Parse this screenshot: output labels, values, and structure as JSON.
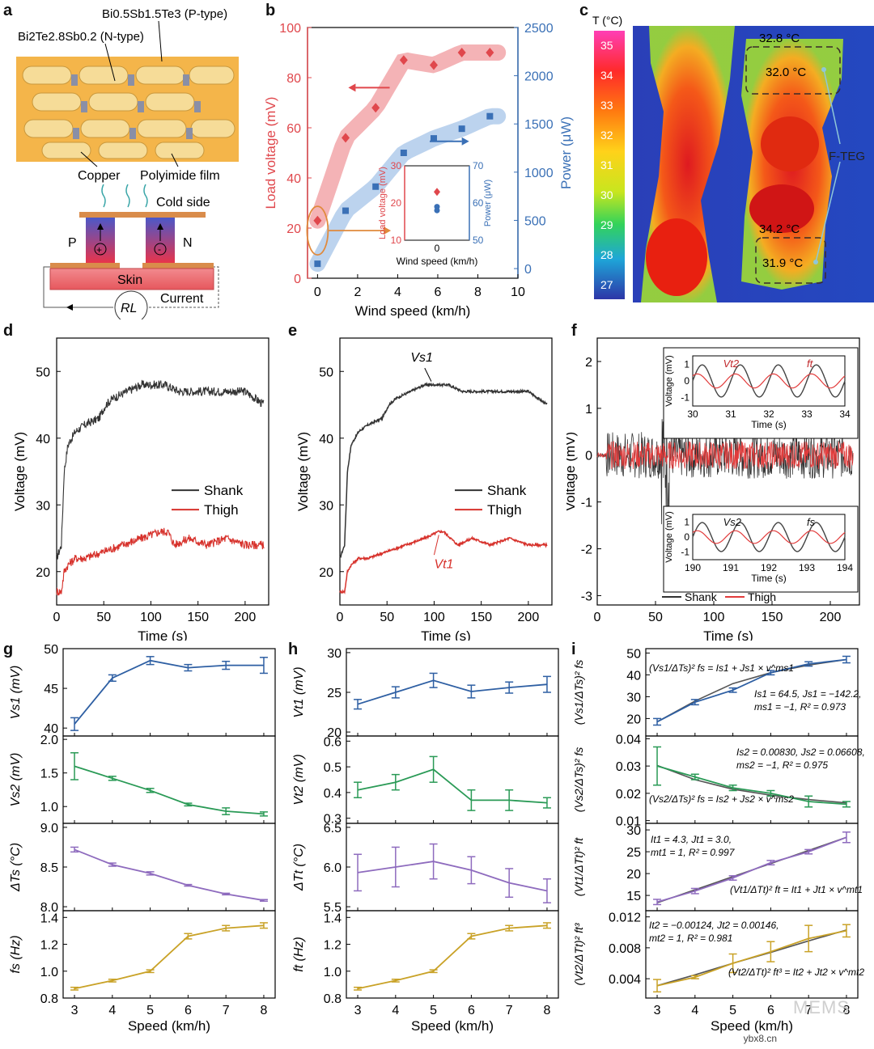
{
  "labels": {
    "a": "a",
    "b": "b",
    "c": "c",
    "d": "d",
    "e": "e",
    "f": "f",
    "g": "g",
    "h": "h",
    "i": "i"
  },
  "panel_a": {
    "p_material": "Bi0.5Sb1.5Te3 (P-type)",
    "n_material": "Bi2Te2.8Sb0.2 (N-type)",
    "copper": "Copper",
    "polyimide": "Polyimide film",
    "cold_side": "Cold side",
    "p": "P",
    "n": "N",
    "skin": "Skin",
    "current": "Current",
    "rl": "RL",
    "colors": {
      "copper": "#f2c97d",
      "skin": "#e06a6f",
      "leg_top": "#5b62c9",
      "leg_bottom": "#e33a4c"
    }
  },
  "panel_c": {
    "scale_title": "T (°C)",
    "scale_ticks": [
      "35",
      "34",
      "33",
      "32",
      "31",
      "30",
      "29",
      "28",
      "27"
    ],
    "t1": "32.8 °C",
    "t2": "32.0 °C",
    "t3": "34.2 °C",
    "t4": "31.9 °C",
    "device": "F-TEG"
  },
  "panel_f_extra": {
    "vt2": "Vt2",
    "ft": "ft",
    "vs2": "Vs2",
    "fs": "fs"
  },
  "panel_i_extra": {
    "eq1": "(Vs1/ΔTs)² fs = Is1 + Js1 × v^ms1",
    "fit1": "Is1 = 64.5, Js1 = −142.2,",
    "fit1b": "ms1 = −1, R² = 0.973",
    "eq2": "(Vs2/ΔTs)² fs = Is2 + Js2 × v^ms2",
    "fit2": "Is2 = 0.00830, Js2 = 0.06608,",
    "fit2b": "ms2 = −1, R² = 0.975",
    "eq3": "(Vt1/ΔTt)² ft = It1 + Jt1 × v^mt1",
    "fit3": "It1 = 4.3, Jt1 = 3.0,",
    "fit3b": "mt1 = 1, R² = 0.997",
    "eq4": "(Vt2/ΔTt)² ft³ = It2 + Jt2 × v^mt2",
    "fit4": "It2 = −0.00124, Jt2 = 0.00146,",
    "fit4b": "mt2 = 1, R² = 0.981"
  },
  "watermark": {
    "text": "MEMS",
    "site": "ybx8.cn"
  },
  "chart_data": [
    {
      "id": "b",
      "type": "scatter",
      "xlabel": "Wind speed (km/h)",
      "ylabel": "Load voltage (mV)",
      "y2label": "Power (μW)",
      "xlim": [
        -0.5,
        10
      ],
      "ylim": [
        0,
        100
      ],
      "y2lim": [
        -100,
        2500
      ],
      "xticks": [
        "0",
        "2",
        "4",
        "6",
        "8",
        "10"
      ],
      "yticks": [
        "0",
        "20",
        "40",
        "60",
        "80",
        "100"
      ],
      "y2ticks": [
        "0",
        "500",
        "1000",
        "1500",
        "2000",
        "2500"
      ],
      "series": [
        {
          "name": "Load voltage",
          "color": "#e0474c",
          "x": [
            0,
            1.4,
            2.9,
            4.3,
            5.8,
            7.2,
            8.6
          ],
          "y": [
            23,
            56,
            68,
            87,
            85,
            90,
            90
          ]
        },
        {
          "name": "Power",
          "color": "#3a70b6",
          "x": [
            0,
            1.4,
            2.9,
            4.3,
            5.8,
            7.2,
            8.6
          ],
          "y": [
            50,
            600,
            850,
            1200,
            1350,
            1450,
            1580
          ]
        }
      ],
      "inset": {
        "xlabel": "Wind speed (km/h)",
        "ylabel": "Load voltage (mV)",
        "y2label": "Power (μW)",
        "xtick": "0",
        "yticks": [
          "10",
          "20",
          "30"
        ],
        "y2ticks": [
          "50",
          "60",
          "70"
        ],
        "voltage": 23,
        "power": [
          58,
          59
        ]
      }
    },
    {
      "id": "d",
      "type": "line",
      "xlabel": "Time (s)",
      "ylabel": "Voltage (mV)",
      "xlim": [
        0,
        225
      ],
      "ylim": [
        15,
        55
      ],
      "xticks": [
        "0",
        "50",
        "100",
        "150",
        "200"
      ],
      "yticks": [
        "20",
        "30",
        "40",
        "50"
      ],
      "series": [
        {
          "name": "Shank",
          "color": "#333333",
          "x": [
            0,
            5,
            8,
            12,
            20,
            30,
            45,
            52,
            60,
            75,
            90,
            100,
            115,
            130,
            150,
            175,
            200,
            210,
            220
          ],
          "y": [
            22,
            24,
            35,
            39,
            41,
            42,
            43,
            45,
            46,
            47,
            48,
            48,
            48,
            47,
            47,
            47,
            47,
            46,
            45
          ]
        },
        {
          "name": "Thigh",
          "color": "#d7322c",
          "x": [
            0,
            5,
            8,
            12,
            20,
            30,
            50,
            70,
            90,
            110,
            118,
            125,
            140,
            160,
            180,
            200,
            220
          ],
          "y": [
            17,
            17,
            20,
            21,
            22,
            22,
            23,
            24,
            25,
            26,
            26,
            24,
            25,
            24,
            25,
            24,
            24
          ]
        }
      ]
    },
    {
      "id": "e",
      "type": "line",
      "xlabel": "Time (s)",
      "ylabel": "Voltage (mV)",
      "xlim": [
        0,
        225
      ],
      "ylim": [
        15,
        55
      ],
      "xticks": [
        "0",
        "50",
        "100",
        "150",
        "200"
      ],
      "yticks": [
        "20",
        "30",
        "40",
        "50"
      ],
      "annotations": [
        "Vs1",
        "Vt1"
      ],
      "series": [
        {
          "name": "Shank",
          "color": "#333333",
          "x": [
            0,
            5,
            8,
            12,
            20,
            30,
            45,
            52,
            60,
            75,
            90,
            100,
            115,
            130,
            150,
            175,
            200,
            210,
            220
          ],
          "y": [
            22,
            24,
            35,
            39,
            41,
            42,
            43,
            45,
            46,
            47,
            48,
            48,
            48,
            47,
            47,
            47,
            47,
            46,
            45
          ]
        },
        {
          "name": "Thigh",
          "color": "#d7322c",
          "x": [
            0,
            5,
            8,
            12,
            20,
            30,
            50,
            70,
            90,
            105,
            110,
            125,
            140,
            160,
            180,
            200,
            220
          ],
          "y": [
            17,
            17,
            20,
            21,
            22,
            22,
            23,
            24,
            25,
            26,
            26,
            24,
            25,
            24,
            25,
            24,
            24
          ]
        }
      ]
    },
    {
      "id": "f",
      "type": "line",
      "xlabel": "Time (s)",
      "ylabel": "Voltage (mV)",
      "xlim": [
        0,
        225
      ],
      "ylim": [
        -3.2,
        2.5
      ],
      "xticks": [
        "0",
        "50",
        "100",
        "150",
        "200"
      ],
      "yticks": [
        "-3",
        "-2",
        "-1",
        "0",
        "1",
        "2"
      ],
      "series": [
        {
          "name": "Shank",
          "color": "#333333",
          "amplitude": 0.5
        },
        {
          "name": "Thigh",
          "color": "#e23b3b",
          "amplitude": 0.3
        }
      ],
      "inset_top": {
        "xlabel": "Time (s)",
        "ylabel": "Voltage (mV)",
        "xticks": [
          "30",
          "31",
          "32",
          "33",
          "34"
        ],
        "yticks": [
          "-1",
          "0",
          "1"
        ]
      },
      "inset_bottom": {
        "xlabel": "Time (s)",
        "ylabel": "Voltage (mV)",
        "xticks": [
          "190",
          "191",
          "192",
          "193",
          "194"
        ],
        "yticks": [
          "-1",
          "0",
          "1"
        ]
      }
    },
    {
      "id": "g",
      "type": "line",
      "xlabel": "Speed (km/h)",
      "x": [
        3,
        4,
        5,
        6,
        7,
        8
      ],
      "xticks": [
        "3",
        "4",
        "5",
        "6",
        "7",
        "8"
      ],
      "subplots": [
        {
          "ylabel": "Vs1 (mV)",
          "color": "#2e5fa3",
          "ylim": [
            39,
            50
          ],
          "yticks": [
            "40",
            "45",
            "50"
          ],
          "y": [
            40.5,
            46.3,
            48.5,
            47.6,
            47.9,
            47.9
          ],
          "err": [
            0.8,
            0.4,
            0.5,
            0.4,
            0.5,
            1.0
          ]
        },
        {
          "ylabel": "Vs2 (mV)",
          "color": "#2a9a56",
          "ylim": [
            0.75,
            2.05
          ],
          "yticks": [
            "1.0",
            "1.5",
            "2.0"
          ],
          "y": [
            1.6,
            1.42,
            1.24,
            1.03,
            0.93,
            0.89
          ],
          "err": [
            0.2,
            0.03,
            0.03,
            0.02,
            0.05,
            0.03
          ]
        },
        {
          "ylabel": "ΔTs (°C)",
          "color": "#8e6bbe",
          "ylim": [
            7.95,
            9.05
          ],
          "yticks": [
            "8.0",
            "8.5",
            "9.0"
          ],
          "y": [
            8.72,
            8.53,
            8.42,
            8.27,
            8.16,
            8.08
          ],
          "err": [
            0.03,
            0.02,
            0.02,
            0.01,
            0.01,
            0.01
          ]
        },
        {
          "ylabel": "fs (Hz)",
          "color": "#c9a227",
          "ylim": [
            0.8,
            1.45
          ],
          "yticks": [
            "0.8",
            "1.0",
            "1.2",
            "1.4"
          ],
          "y": [
            0.87,
            0.93,
            1.0,
            1.26,
            1.32,
            1.34
          ],
          "err": [
            0.01,
            0.01,
            0.01,
            0.02,
            0.02,
            0.02
          ]
        }
      ]
    },
    {
      "id": "h",
      "type": "line",
      "xlabel": "Speed (km/h)",
      "x": [
        3,
        4,
        5,
        6,
        7,
        8
      ],
      "xticks": [
        "3",
        "4",
        "5",
        "6",
        "7",
        "8"
      ],
      "subplots": [
        {
          "ylabel": "Vt1 (mV)",
          "color": "#2e5fa3",
          "ylim": [
            19.5,
            30.5
          ],
          "yticks": [
            "20",
            "25",
            "30"
          ],
          "y": [
            23.5,
            25.0,
            26.5,
            25.1,
            25.6,
            26.0
          ],
          "err": [
            0.6,
            0.7,
            0.9,
            0.8,
            0.7,
            1.0
          ]
        },
        {
          "ylabel": "Vt2 (mV)",
          "color": "#2a9a56",
          "ylim": [
            0.28,
            0.62
          ],
          "yticks": [
            "0.3",
            "0.4",
            "0.5",
            "0.6"
          ],
          "y": [
            0.41,
            0.44,
            0.49,
            0.37,
            0.37,
            0.36
          ],
          "err": [
            0.03,
            0.03,
            0.05,
            0.04,
            0.04,
            0.02
          ]
        },
        {
          "ylabel": "ΔTt (°C)",
          "color": "#8e6bbe",
          "ylim": [
            5.45,
            6.55
          ],
          "yticks": [
            "5.5",
            "6.0",
            "6.5"
          ],
          "y": [
            5.93,
            6.0,
            6.07,
            5.96,
            5.8,
            5.7
          ],
          "err": [
            0.23,
            0.25,
            0.22,
            0.17,
            0.18,
            0.15
          ]
        },
        {
          "ylabel": "ft (Hz)",
          "color": "#c9a227",
          "ylim": [
            0.8,
            1.45
          ],
          "yticks": [
            "0.8",
            "1.0",
            "1.2",
            "1.4"
          ],
          "y": [
            0.87,
            0.93,
            1.0,
            1.26,
            1.32,
            1.34
          ],
          "err": [
            0.01,
            0.01,
            0.01,
            0.02,
            0.02,
            0.02
          ]
        }
      ]
    },
    {
      "id": "i",
      "type": "line",
      "xlabel": "Speed (km/h)",
      "x": [
        3,
        4,
        5,
        6,
        7,
        8
      ],
      "xticks": [
        "3",
        "4",
        "5",
        "6",
        "7",
        "8"
      ],
      "subplots": [
        {
          "ylabel": "(Vs1/ΔTs)² fs",
          "color": "#2e5fa3",
          "ylim": [
            12,
            52
          ],
          "yticks": [
            "20",
            "30",
            "40",
            "50"
          ],
          "y": [
            18.5,
            27.5,
            33,
            41,
            45,
            47
          ],
          "err": [
            1.5,
            1.2,
            1.0,
            1.0,
            1.0,
            1.5
          ],
          "fit": [
            18.5,
            28,
            36,
            41,
            44.5,
            47
          ]
        },
        {
          "ylabel": "(Vs2/ΔTs)² fs",
          "color": "#2a9a56",
          "ylim": [
            0.009,
            0.041
          ],
          "yticks": [
            "0.01",
            "0.02",
            "0.03",
            "0.04"
          ],
          "y": [
            0.03,
            0.026,
            0.022,
            0.02,
            0.017,
            0.016
          ],
          "err": [
            0.007,
            0.001,
            0.001,
            0.001,
            0.002,
            0.001
          ],
          "fit": [
            0.0302,
            0.025,
            0.0215,
            0.0193,
            0.0177,
            0.0165
          ]
        },
        {
          "ylabel": "(Vt1/ΔTt)² ft",
          "color": "#8e6bbe",
          "ylim": [
            11.5,
            31.5
          ],
          "yticks": [
            "15",
            "20",
            "25",
            "30"
          ],
          "y": [
            13.5,
            16,
            19,
            22.5,
            25,
            28.3
          ],
          "err": [
            0.6,
            0.6,
            0.5,
            0.5,
            0.5,
            1.2
          ],
          "fit": [
            13.3,
            16.3,
            19.3,
            22.3,
            25.3,
            28.3
          ]
        },
        {
          "ylabel": "(Vt2/ΔTt)² ft³",
          "color": "#c9a227",
          "ylim": [
            0.0015,
            0.0128
          ],
          "yticks": [
            "0.004",
            "0.008",
            "0.012"
          ],
          "y": [
            0.0031,
            0.0042,
            0.006,
            0.0075,
            0.0092,
            0.0102
          ],
          "err": [
            0.0008,
            0.0002,
            0.0012,
            0.0013,
            0.0017,
            0.0008
          ],
          "fit": [
            0.0031,
            0.0045,
            0.006,
            0.0074,
            0.0089,
            0.0103
          ]
        }
      ]
    }
  ]
}
